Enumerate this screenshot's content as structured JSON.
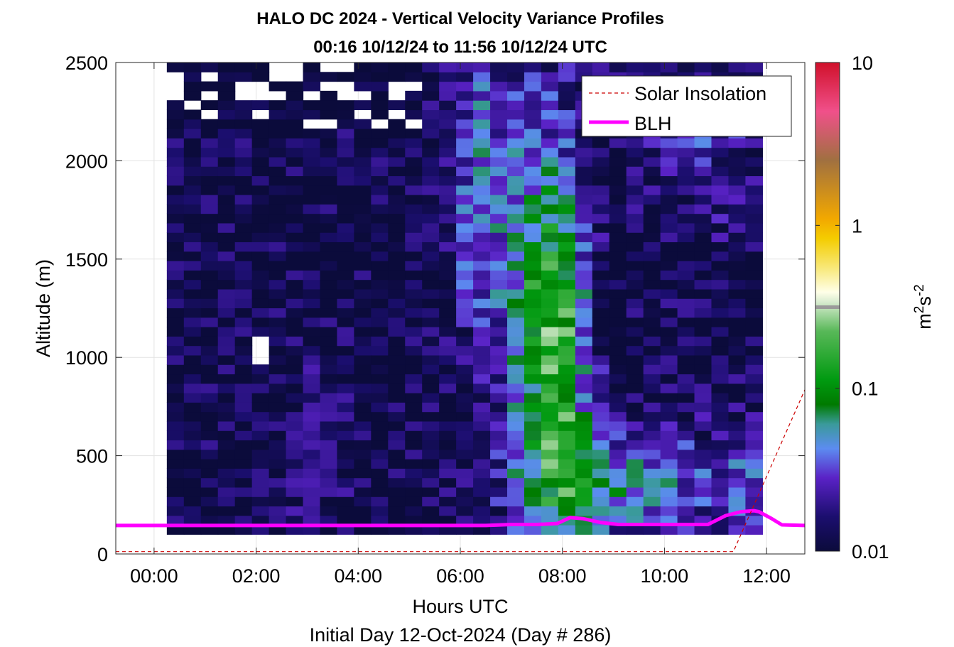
{
  "chart_data": {
    "type": "heatmap",
    "title": "HALO DC 2024 - Vertical Velocity Variance Profiles",
    "subtitle": "00:16 10/12/24 to 11:56 10/12/24  UTC",
    "xlabel": "Hours UTC",
    "xlabel2": "Initial Day 12-Oct-2024 (Day # 286)",
    "ylabel": "Altitude (m)",
    "colorbar_label": "m²s⁻²",
    "colorbar_label_base": "m",
    "colorbar_label_exp1": "2",
    "colorbar_label_mid": "s",
    "colorbar_label_exp2": "-2",
    "color_scale": "log",
    "clim": [
      0.01,
      10
    ],
    "colorbar_ticks": [
      0.01,
      0.1,
      1,
      10
    ],
    "colorbar_tick_labels": [
      "0.01",
      "0.1",
      "1",
      "10"
    ],
    "xlim_hours": [
      -0.75,
      12.75
    ],
    "xticks": [
      0,
      2,
      4,
      6,
      8,
      10,
      12
    ],
    "xtick_labels": [
      "00:00",
      "02:00",
      "04:00",
      "06:00",
      "08:00",
      "10:00",
      "12:00"
    ],
    "ylim": [
      0,
      2500
    ],
    "yticks": [
      0,
      500,
      1000,
      1500,
      2000,
      2500
    ],
    "ytick_labels": [
      "0",
      "500",
      "1000",
      "1500",
      "2000",
      "2500"
    ],
    "grid": true,
    "legend": {
      "placement": "top-right",
      "entries": [
        {
          "label": "Solar Insolation",
          "color": "#cc0000",
          "style": "dashed"
        },
        {
          "label": "BLH",
          "color": "#ff00ff",
          "style": "solid"
        }
      ]
    },
    "heatmap": {
      "x_start_hours": 0.25,
      "x_end_hours": 11.92,
      "columns": 35,
      "y_start_m": 100,
      "y_end_m": 2500,
      "rows": 50,
      "description": "variance per 20-min x 48-m cell, log scale; background ~0.01; enhanced layers 06:00-12:00 reaching 0.1-0.3 near 07:30-08:15"
    },
    "series": [
      {
        "name": "BLH",
        "color": "#ff00ff",
        "x_hours": [
          -0.75,
          -0.1,
          0.55,
          6.5,
          7.0,
          7.5,
          7.9,
          8.15,
          8.4,
          8.75,
          9.1,
          10.0,
          10.85,
          11.2,
          11.5,
          11.75,
          11.85,
          12.1,
          12.3,
          12.75
        ],
        "y_m": [
          145,
          145,
          145,
          145,
          150,
          150,
          155,
          185,
          180,
          160,
          150,
          150,
          150,
          195,
          215,
          220,
          215,
          180,
          148,
          145
        ]
      },
      {
        "name": "Solar Insolation",
        "color": "#cc0000",
        "x_hours": [
          -0.75,
          11.35,
          12.75
        ],
        "y_m": [
          12,
          12,
          835
        ]
      }
    ]
  }
}
